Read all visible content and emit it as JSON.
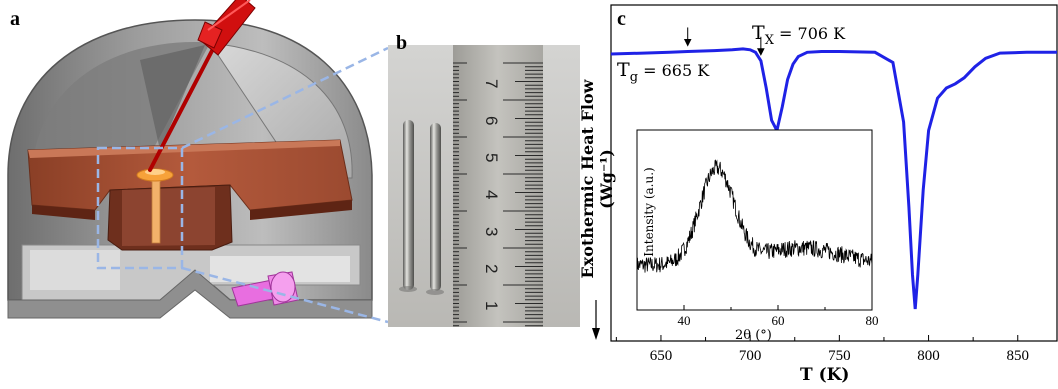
{
  "figure": {
    "panel_a": {
      "label": "a"
    },
    "panel_b": {
      "label": "b",
      "ruler_numbers": [
        "7",
        "6",
        "5",
        "4",
        "3",
        "2",
        "1"
      ]
    },
    "panel_c": {
      "label": "c"
    }
  },
  "chart_data": [
    {
      "type": "line",
      "panel": "c",
      "xlabel": "T (K)",
      "ylabel": "Exothermic Heat Flow (Wg⁻¹)",
      "xlim": [
        622,
        872
      ],
      "x_ticks": [
        650,
        700,
        750,
        800,
        850
      ],
      "y_ticks": [],
      "grid": false,
      "annotations": [
        {
          "text": "Tg = 665 K",
          "main": "T",
          "sub": "g",
          "rest": " = 665 K",
          "x": 665
        },
        {
          "text": "Tx = 706 K",
          "main": "T",
          "sub": "X",
          "rest": " = 706 K",
          "x": 706
        }
      ],
      "series": [
        {
          "color": "#1f22e6",
          "x": [
            622,
            640,
            655,
            665,
            680,
            690,
            696,
            700,
            703,
            706,
            709,
            712,
            715,
            718,
            721,
            724,
            727,
            732,
            740,
            750,
            760,
            770,
            780,
            786,
            789,
            791,
            792.5,
            794,
            797,
            800,
            805,
            810,
            815,
            820,
            826,
            832,
            840,
            855,
            872
          ],
          "y": [
            0.0,
            0.01,
            0.02,
            0.03,
            0.04,
            0.05,
            0.06,
            0.05,
            0.02,
            -0.08,
            -0.4,
            -0.78,
            -0.9,
            -0.62,
            -0.3,
            -0.12,
            -0.03,
            0.02,
            0.03,
            0.03,
            0.025,
            0.02,
            -0.1,
            -0.8,
            -1.8,
            -2.6,
            -3.0,
            -2.6,
            -1.6,
            -0.9,
            -0.52,
            -0.4,
            -0.35,
            -0.28,
            -0.15,
            -0.05,
            0.01,
            0.02,
            0.02
          ]
        }
      ]
    },
    {
      "type": "line",
      "panel": "c-inset",
      "xlabel": "2θ (°)",
      "ylabel": "Intensity (a.u.)",
      "xlim": [
        30,
        80
      ],
      "x_ticks": [
        40,
        60,
        80
      ],
      "grid": false,
      "series": [
        {
          "color": "#000000",
          "profile": "broad amorphous halo",
          "peak_x": 47
        }
      ]
    }
  ]
}
